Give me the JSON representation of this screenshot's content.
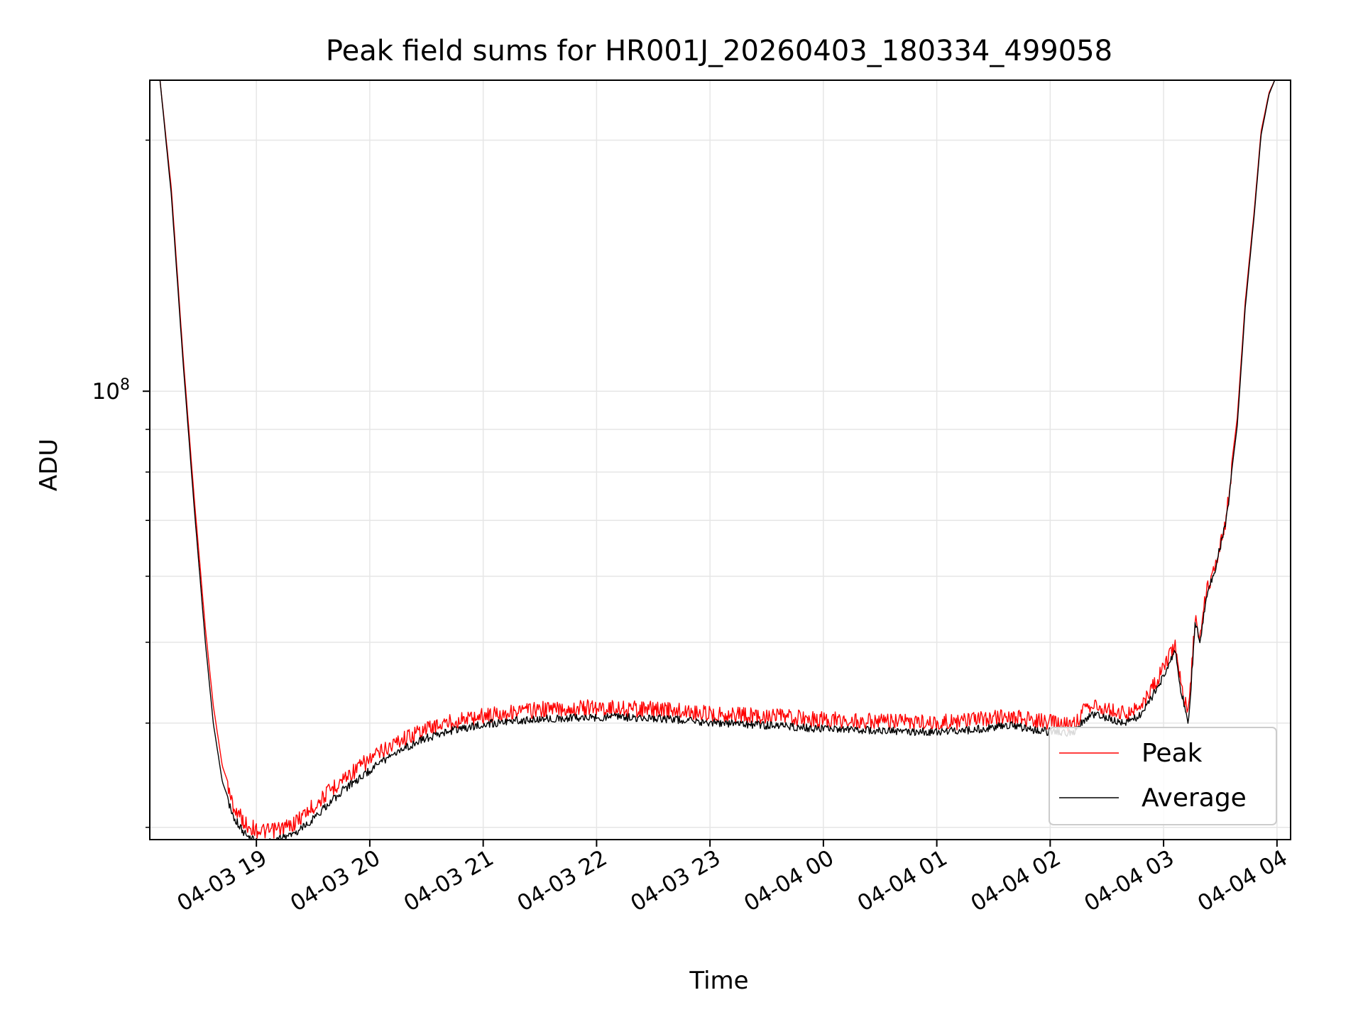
{
  "chart_data": {
    "type": "line",
    "title": "Peak field sums for HR001J_20260403_180334_499058",
    "xlabel": "Time",
    "ylabel": "ADU",
    "yscale": "log",
    "ylim": [
      29000000,
      236000000
    ],
    "xlim_hours": [
      18.06,
      28.12
    ],
    "x_tick_labels": [
      "04-03 19",
      "04-03 20",
      "04-03 21",
      "04-03 22",
      "04-03 23",
      "04-04 00",
      "04-04 01",
      "04-04 02",
      "04-04 03",
      "04-04 04"
    ],
    "x_tick_hours": [
      19,
      20,
      21,
      22,
      23,
      24,
      25,
      26,
      27,
      28
    ],
    "y_major_ticks": [
      {
        "value": 100000000,
        "base": "10",
        "exp": "8"
      }
    ],
    "y_minor_ticks": [
      30000000,
      40000000,
      50000000,
      60000000,
      70000000,
      80000000,
      90000000,
      200000000
    ],
    "grid": true,
    "legend_position": "lower-right",
    "series": [
      {
        "name": "Peak",
        "color": "#ff0000",
        "x_hours": [
          18.15,
          18.25,
          18.35,
          18.45,
          18.55,
          18.62,
          18.7,
          18.8,
          18.9,
          19.0,
          19.1,
          19.3,
          19.5,
          19.75,
          20.0,
          20.25,
          20.5,
          20.75,
          21.0,
          21.25,
          21.5,
          21.75,
          22.0,
          22.25,
          22.5,
          22.75,
          23.0,
          23.25,
          23.5,
          23.75,
          24.0,
          24.25,
          24.5,
          24.75,
          25.0,
          25.25,
          25.5,
          25.65,
          25.8,
          26.0,
          26.2,
          26.35,
          26.5,
          26.65,
          26.8,
          26.9,
          27.0,
          27.1,
          27.15,
          27.2,
          27.22,
          27.28,
          27.32,
          27.38,
          27.45,
          27.55,
          27.65,
          27.72,
          27.8,
          27.86,
          27.93,
          27.98
        ],
        "values": [
          236000000,
          175000000,
          112000000,
          75000000,
          52000000,
          42000000,
          35500000,
          32500000,
          31000000,
          30500000,
          30300000,
          30800000,
          32500000,
          35000000,
          37000000,
          39000000,
          40300000,
          41200000,
          41800000,
          42200000,
          42500000,
          42600000,
          42700000,
          42600000,
          42500000,
          42300000,
          42000000,
          41900000,
          41700000,
          41500000,
          41300000,
          41200000,
          41100000,
          41000000,
          41000000,
          41100000,
          41500000,
          41800000,
          41300000,
          41000000,
          40800000,
          43000000,
          42500000,
          42000000,
          42800000,
          45000000,
          47500000,
          51000000,
          46000000,
          43000000,
          42000000,
          55000000,
          52000000,
          59000000,
          63000000,
          72000000,
          93000000,
          128000000,
          165000000,
          205000000,
          228000000,
          236000000
        ]
      },
      {
        "name": "Average",
        "color": "#000000",
        "x_hours": [
          18.15,
          18.25,
          18.35,
          18.45,
          18.55,
          18.62,
          18.7,
          18.8,
          18.9,
          19.0,
          19.1,
          19.3,
          19.5,
          19.75,
          20.0,
          20.25,
          20.5,
          20.75,
          21.0,
          21.25,
          21.5,
          21.75,
          22.0,
          22.25,
          22.5,
          22.75,
          23.0,
          23.25,
          23.5,
          23.75,
          24.0,
          24.25,
          24.5,
          24.75,
          25.0,
          25.25,
          25.5,
          25.65,
          25.8,
          26.0,
          26.2,
          26.35,
          26.5,
          26.65,
          26.8,
          26.9,
          27.0,
          27.1,
          27.15,
          27.2,
          27.22,
          27.28,
          27.32,
          27.38,
          27.45,
          27.55,
          27.65,
          27.72,
          27.8,
          27.86,
          27.93,
          27.98
        ],
        "values": [
          236000000,
          172000000,
          110000000,
          73000000,
          50000000,
          40000000,
          34000000,
          31200000,
          29800000,
          29200000,
          29100000,
          29600000,
          31000000,
          33500000,
          35500000,
          37500000,
          38800000,
          39700000,
          40300000,
          40700000,
          40900000,
          41000000,
          41100000,
          41100000,
          41000000,
          40800000,
          40500000,
          40400000,
          40200000,
          40000000,
          39800000,
          39700000,
          39600000,
          39500000,
          39500000,
          39600000,
          40000000,
          40300000,
          39800000,
          39500000,
          39300000,
          41500000,
          41000000,
          40500000,
          41300000,
          43500000,
          46000000,
          49500000,
          44500000,
          41500000,
          40500000,
          53500000,
          50500000,
          57500000,
          61500000,
          70500000,
          91000000,
          126000000,
          163000000,
          203000000,
          227000000,
          236000000
        ]
      }
    ]
  }
}
